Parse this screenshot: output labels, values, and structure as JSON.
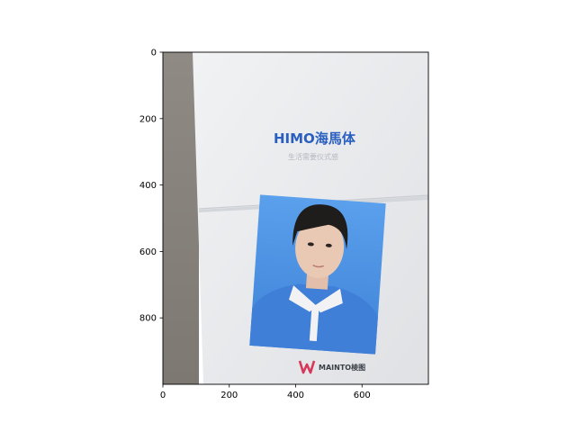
{
  "photo": {
    "brand_title": "HIMO海馬体",
    "brand_subtitle": "生活需要仪式感",
    "watermark": "MAINTO棱图",
    "colors": {
      "desk": "#8a857f",
      "envelope": "#e9eaec",
      "backdrop": "#4a8fe0",
      "shirt": "#3f7fd8",
      "collar": "#f2f2f4",
      "hair": "#1f1c1c",
      "skin": "#e9c8b4",
      "brand_blue": "#2a5fc0"
    }
  },
  "axes": {
    "x_ticks": [
      "0",
      "200",
      "400",
      "600"
    ],
    "y_ticks": [
      "0",
      "200",
      "400",
      "600",
      "800"
    ],
    "x_tick_values": [
      0,
      200,
      400,
      600
    ],
    "y_tick_values": [
      0,
      200,
      400,
      600,
      800
    ],
    "x_range": [
      0,
      800
    ],
    "y_range": [
      1000,
      0
    ]
  }
}
